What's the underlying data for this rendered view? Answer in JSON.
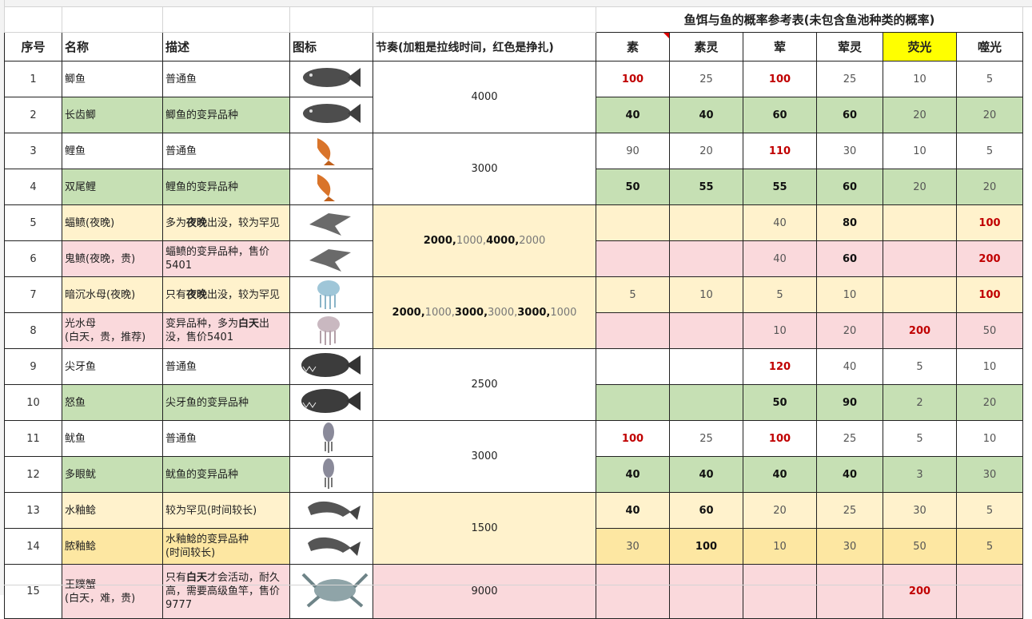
{
  "header": {
    "title": "鱼饵与鱼的概率参考表(未包含鱼池种类的概率)"
  },
  "columns": [
    "序号",
    "名称",
    "描述",
    "图标",
    "节奏(加粗是拉线时间，红色是挣扎)",
    "素",
    "素灵",
    "荤",
    "荤灵",
    "荧光",
    "噬光"
  ],
  "highlight_column": 9,
  "comment_column": 5,
  "groups": [
    {
      "rhythm": 4000,
      "fill": "white",
      "fish": [
        {
          "no": 1,
          "name": "鲫鱼",
          "desc": "普通鱼",
          "fill": "white",
          "rates": [
            {
              "v": 100,
              "s": "red"
            },
            {
              "v": 25,
              "s": "normal"
            },
            {
              "v": 100,
              "s": "red"
            },
            {
              "v": 25,
              "s": "normal"
            },
            {
              "v": 10,
              "s": "normal"
            },
            {
              "v": 5,
              "s": "normal"
            }
          ]
        },
        {
          "no": 2,
          "name": "长齿鲫",
          "desc": "鲫鱼的变异品种",
          "fill": "green",
          "rates": [
            {
              "v": 40,
              "s": "bold"
            },
            {
              "v": 40,
              "s": "bold"
            },
            {
              "v": 60,
              "s": "bold"
            },
            {
              "v": 60,
              "s": "bold"
            },
            {
              "v": 20,
              "s": "normal"
            },
            {
              "v": 20,
              "s": "normal"
            }
          ]
        }
      ]
    },
    {
      "rhythm": 3000,
      "fill": "white",
      "fish": [
        {
          "no": 3,
          "name": "鲤鱼",
          "desc": "普通鱼",
          "fill": "white",
          "rates": [
            {
              "v": 90,
              "s": "normal"
            },
            {
              "v": 20,
              "s": "normal"
            },
            {
              "v": 110,
              "s": "red"
            },
            {
              "v": 30,
              "s": "normal"
            },
            {
              "v": 10,
              "s": "normal"
            },
            {
              "v": 5,
              "s": "normal"
            }
          ]
        },
        {
          "no": 4,
          "name": "双尾鲤",
          "desc": "鲤鱼的变异品种",
          "fill": "green",
          "rates": [
            {
              "v": 50,
              "s": "bold"
            },
            {
              "v": 55,
              "s": "bold"
            },
            {
              "v": 55,
              "s": "bold"
            },
            {
              "v": 60,
              "s": "bold"
            },
            {
              "v": 20,
              "s": "normal"
            },
            {
              "v": 20,
              "s": "normal"
            }
          ]
        }
      ]
    },
    {
      "rhythm": [
        {
          "text": "2000,",
          "bold": true
        },
        {
          "text": "1000,",
          "bold": false
        },
        {
          "text": "4000,",
          "bold": true
        },
        {
          "text": "2000",
          "bold": false
        }
      ],
      "fill": "yellow",
      "fish": [
        {
          "no": 5,
          "name": "蝠鲼(夜晚)",
          "desc": [
            {
              "text": "多为",
              "bold": false
            },
            {
              "text": "夜晚",
              "bold": true
            },
            {
              "text": "出没，较为罕见",
              "bold": false
            }
          ],
          "fill": "yellow",
          "rates": [
            null,
            null,
            {
              "v": 40,
              "s": "normal"
            },
            {
              "v": 80,
              "s": "bold"
            },
            null,
            {
              "v": 100,
              "s": "red"
            }
          ]
        },
        {
          "no": 6,
          "name": "鬼鲼(夜晚，贵)",
          "desc": "蝠鲼的变异品种，售价5401",
          "fill": "pink",
          "rates": [
            null,
            null,
            {
              "v": 40,
              "s": "normal"
            },
            {
              "v": 60,
              "s": "bold"
            },
            null,
            {
              "v": 200,
              "s": "red"
            }
          ]
        }
      ]
    },
    {
      "rhythm": [
        {
          "text": "2000,",
          "bold": true
        },
        {
          "text": "1000,",
          "bold": false
        },
        {
          "text": "3000,",
          "bold": true
        },
        {
          "text": "3000,",
          "bold": false
        },
        {
          "text": "3000,",
          "bold": true
        },
        {
          "text": "1000",
          "bold": false
        }
      ],
      "fill": "yellow",
      "fish": [
        {
          "no": 7,
          "name": "暗沉水母(夜晚)",
          "desc": [
            {
              "text": "只有",
              "bold": false
            },
            {
              "text": "夜晚",
              "bold": true
            },
            {
              "text": "出没，较为罕见",
              "bold": false
            }
          ],
          "fill": "yellow",
          "rates": [
            {
              "v": 5,
              "s": "normal"
            },
            {
              "v": 10,
              "s": "normal"
            },
            {
              "v": 5,
              "s": "normal"
            },
            {
              "v": 10,
              "s": "normal"
            },
            null,
            {
              "v": 100,
              "s": "red"
            }
          ]
        },
        {
          "no": 8,
          "name": "光水母\n(白天，贵，推荐)",
          "desc": [
            {
              "text": "变异品种，多为",
              "bold": false
            },
            {
              "text": "白天",
              "bold": true
            },
            {
              "text": "出没，售价5401",
              "bold": false
            }
          ],
          "fill": "pink",
          "rates": [
            null,
            null,
            {
              "v": 10,
              "s": "normal"
            },
            {
              "v": 20,
              "s": "normal"
            },
            {
              "v": 200,
              "s": "red"
            },
            {
              "v": 50,
              "s": "normal"
            }
          ]
        }
      ]
    },
    {
      "rhythm": 2500,
      "fill": "white",
      "fish": [
        {
          "no": 9,
          "name": "尖牙鱼",
          "desc": "普通鱼",
          "fill": "white",
          "rates": [
            null,
            null,
            {
              "v": 120,
              "s": "red"
            },
            {
              "v": 40,
              "s": "normal"
            },
            {
              "v": 5,
              "s": "normal"
            },
            {
              "v": 10,
              "s": "normal"
            }
          ]
        },
        {
          "no": 10,
          "name": "怒鱼",
          "desc": "尖牙鱼的变异品种",
          "fill": "green",
          "rates": [
            null,
            null,
            {
              "v": 50,
              "s": "bold"
            },
            {
              "v": 90,
              "s": "bold"
            },
            {
              "v": 2,
              "s": "normal"
            },
            {
              "v": 20,
              "s": "normal"
            }
          ]
        }
      ]
    },
    {
      "rhythm": 3000,
      "fill": "white",
      "fish": [
        {
          "no": 11,
          "name": "鱿鱼",
          "desc": "普通鱼",
          "fill": "white",
          "rates": [
            {
              "v": 100,
              "s": "red"
            },
            {
              "v": 25,
              "s": "normal"
            },
            {
              "v": 100,
              "s": "red"
            },
            {
              "v": 25,
              "s": "normal"
            },
            {
              "v": 5,
              "s": "normal"
            },
            {
              "v": 10,
              "s": "normal"
            }
          ]
        },
        {
          "no": 12,
          "name": "多眼鱿",
          "desc": "鱿鱼的变异品种",
          "fill": "green",
          "rates": [
            {
              "v": 40,
              "s": "bold"
            },
            {
              "v": 40,
              "s": "bold"
            },
            {
              "v": 40,
              "s": "bold"
            },
            {
              "v": 40,
              "s": "bold"
            },
            {
              "v": 3,
              "s": "normal"
            },
            {
              "v": 30,
              "s": "normal"
            }
          ]
        }
      ]
    },
    {
      "rhythm": 1500,
      "fill": "yellow",
      "fish": [
        {
          "no": 13,
          "name": "水釉鲶",
          "desc": "较为罕见(时间较长)",
          "fill": "yellow",
          "rates": [
            {
              "v": 40,
              "s": "bold"
            },
            {
              "v": 60,
              "s": "bold"
            },
            {
              "v": 20,
              "s": "normal"
            },
            {
              "v": 25,
              "s": "normal"
            },
            {
              "v": 30,
              "s": "normal"
            },
            {
              "v": 5,
              "s": "normal"
            }
          ]
        },
        {
          "no": 14,
          "name": "脓釉鲶",
          "desc": "水釉鲶的变异品种\n(时间较长)",
          "fill": "gold",
          "rates": [
            {
              "v": 30,
              "s": "normal"
            },
            {
              "v": 100,
              "s": "bold"
            },
            {
              "v": 10,
              "s": "normal"
            },
            {
              "v": 30,
              "s": "normal"
            },
            {
              "v": 50,
              "s": "normal"
            },
            {
              "v": 5,
              "s": "normal"
            }
          ]
        }
      ]
    },
    {
      "rhythm": 9000,
      "fill": "pink",
      "fish": [
        {
          "no": 15,
          "name": "王蹼蟹\n(白天，难，贵)",
          "desc": [
            {
              "text": "只有",
              "bold": false
            },
            {
              "text": "白天",
              "bold": true
            },
            {
              "text": "才会活动，耐久高，需要高级鱼竿，售价9777",
              "bold": false
            }
          ],
          "fill": "pink",
          "rates": [
            null,
            null,
            null,
            null,
            {
              "v": 200,
              "s": "red"
            },
            null
          ]
        }
      ]
    }
  ]
}
